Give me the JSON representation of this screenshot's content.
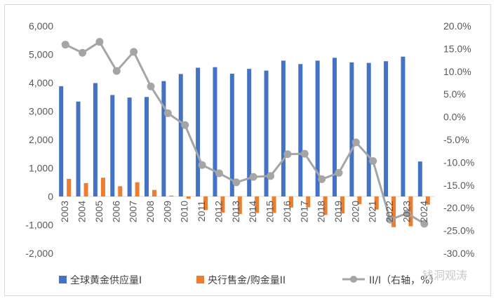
{
  "chart_data": {
    "type": "bar",
    "categories": [
      "2003",
      "2004",
      "2005",
      "2006",
      "2007",
      "2008",
      "2009",
      "2010",
      "2011",
      "2012",
      "2013",
      "2014",
      "2015",
      "2016",
      "2017",
      "2018",
      "2019",
      "2020",
      "2021",
      "2022",
      "2023",
      "2024"
    ],
    "series": [
      {
        "name": "全球黄金供应量I",
        "type": "bar",
        "axis": "left",
        "color": "#4472c4",
        "values": [
          3880,
          3340,
          3990,
          3570,
          3480,
          3500,
          4060,
          4310,
          4530,
          4550,
          4320,
          4490,
          4430,
          4780,
          4660,
          4780,
          4880,
          4720,
          4700,
          4760,
          4920,
          1230
        ]
      },
      {
        "name": "央行售金/购金量II",
        "type": "bar",
        "axis": "left",
        "color": "#ed7d31",
        "values": [
          620,
          470,
          660,
          360,
          500,
          230,
          30,
          -80,
          -480,
          -570,
          -620,
          -580,
          -580,
          -390,
          -380,
          -650,
          -600,
          -270,
          -460,
          -1080,
          -1050,
          -290
        ]
      },
      {
        "name": "II/I（右轴，%）",
        "type": "line",
        "axis": "right",
        "color": "#a5a5a5",
        "values": [
          15.9,
          14.1,
          16.5,
          10.1,
          14.3,
          6.7,
          0.8,
          -1.8,
          -10.6,
          -12.4,
          -14.4,
          -13.2,
          -13.0,
          -8.2,
          -8.1,
          -13.7,
          -12.3,
          -5.6,
          -9.7,
          -22.6,
          -21.2,
          -23.5
        ]
      }
    ],
    "y_left": {
      "min": -2000,
      "max": 6000,
      "step": 1000,
      "tick_labels": [
        "-2,000",
        "-1,000",
        "0",
        "1,000",
        "2,000",
        "3,000",
        "4,000",
        "5,000",
        "6,000"
      ]
    },
    "y_right": {
      "min": -30,
      "max": 20,
      "step": 5,
      "tick_labels": [
        "-30.0%",
        "-25.0%",
        "-20.0%",
        "-15.0%",
        "-10.0%",
        "-5.0%",
        "0.0%",
        "5.0%",
        "10.0%",
        "15.0%",
        "20.0%"
      ]
    },
    "grid": false,
    "legend_position": "bottom",
    "title": ""
  },
  "legend": {
    "item1": "全球黄金供应量I",
    "item2": "央行售金/购金量II",
    "item3": "II/I（右轴，%）"
  },
  "watermark": "钱洞观涛"
}
